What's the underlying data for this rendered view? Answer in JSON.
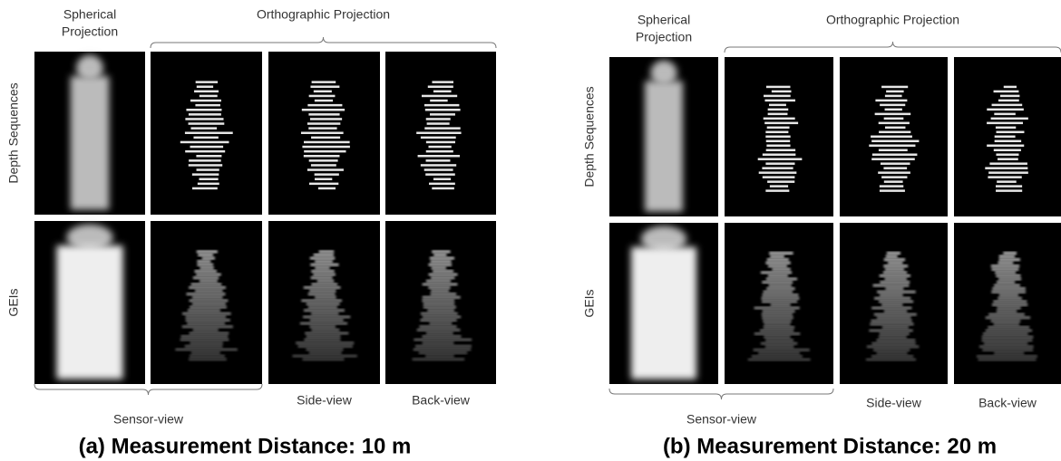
{
  "panels": [
    {
      "spherical_label": [
        "Spherical",
        "Projection"
      ],
      "orthographic_label": "Orthographic Projection",
      "row_labels": [
        "Depth Sequences",
        "GEIs"
      ],
      "sensor_label": "Sensor-view",
      "side_label": "Side-view",
      "back_label": "Back-view",
      "caption": "(a) Measurement Distance: 10 m"
    },
    {
      "spherical_label": [
        "Spherical",
        "Projection"
      ],
      "orthographic_label": "Orthographic Projection",
      "row_labels": [
        "Depth Sequences",
        "GEIs"
      ],
      "sensor_label": "Sensor-view",
      "side_label": "Side-view",
      "back_label": "Back-view",
      "caption": "(b) Measurement Distance: 20 m"
    }
  ]
}
